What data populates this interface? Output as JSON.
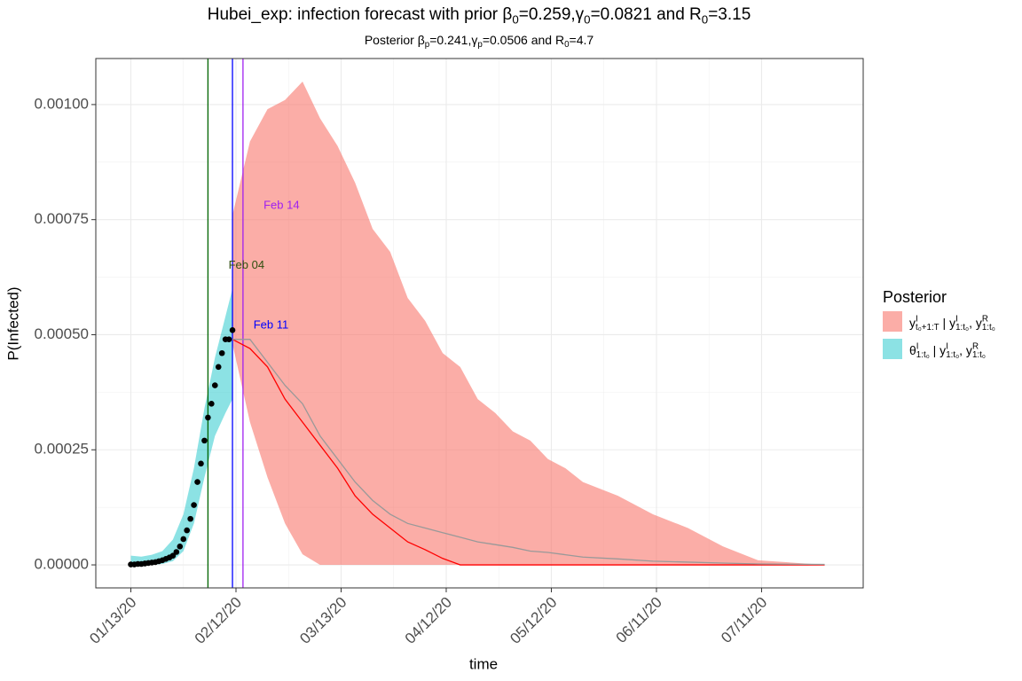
{
  "chart_data": {
    "type": "ribbon",
    "title": [
      "Hubei_exp: infection forecast with prior β",
      {
        "text": "0",
        "pos": "sub"
      },
      "=0.259,γ",
      {
        "text": "0",
        "pos": "sub"
      },
      "=0.0821 and R",
      {
        "text": "0",
        "pos": "sub"
      },
      "=3.15"
    ],
    "subtitle": [
      "Posterior β",
      {
        "text": "p",
        "pos": "sub"
      },
      "=0.241,γ",
      {
        "text": "p",
        "pos": "sub"
      },
      "=0.0506 and R",
      {
        "text": "0",
        "pos": "sub"
      },
      "=4.7"
    ],
    "x_label": "time",
    "y_label": "P(Infected)",
    "legend_title": "Posterior",
    "legend": "right",
    "grid": true,
    "xlim": [
      "01/03/20",
      "08/09/20"
    ],
    "xticks": [
      "01/13/20",
      "02/12/20",
      "03/13/20",
      "04/12/20",
      "05/12/20",
      "06/11/20",
      "07/11/20"
    ],
    "ylim": [
      -5e-05,
      0.0011
    ],
    "yticks": [
      {
        "value": 0,
        "label": "0.00000"
      },
      {
        "value": 0.00025,
        "label": "0.00025"
      },
      {
        "value": 0.0005,
        "label": "0.00050"
      },
      {
        "value": 0.00075,
        "label": "0.00075"
      },
      {
        "value": 0.001,
        "label": "0.00100"
      }
    ],
    "series": [
      {
        "name": [
          "y",
          {
            "text": "I",
            "pos": "sup"
          },
          {
            "text": "t₀+1:T",
            "pos": "sub"
          },
          " | y",
          {
            "text": "I",
            "pos": "sup"
          },
          {
            "text": "1:t₀",
            "pos": "sub"
          },
          ", y",
          {
            "text": "R",
            "pos": "sup"
          },
          {
            "text": "1:t₀",
            "pos": "sub"
          }
        ],
        "color": "#F8766D",
        "opacity": 0.6,
        "x": [
          "02/11/20",
          "02/16/20",
          "02/21/20",
          "02/26/20",
          "03/02/20",
          "03/07/20",
          "03/12/20",
          "03/17/20",
          "03/22/20",
          "03/27/20",
          "04/01/20",
          "04/06/20",
          "04/11/20",
          "04/16/20",
          "04/21/20",
          "04/26/20",
          "05/01/20",
          "05/06/20",
          "05/11/20",
          "05/16/20",
          "05/21/20",
          "05/31/20",
          "06/10/20",
          "06/20/20",
          "06/30/20",
          "07/10/20",
          "07/29/20"
        ],
        "lower": [
          0.00048,
          0.00031,
          0.00019,
          9e-05,
          2.3e-05,
          0,
          0,
          0,
          0,
          0,
          0,
          0,
          0,
          0,
          0,
          0,
          0,
          0,
          0,
          0,
          0,
          0,
          0,
          0,
          0,
          0,
          0
        ],
        "upper": [
          0.00076,
          0.00092,
          0.00099,
          0.00101,
          0.00105,
          0.00097,
          0.00091,
          0.00083,
          0.00073,
          0.00068,
          0.00058,
          0.00053,
          0.00046,
          0.00043,
          0.00036,
          0.00033,
          0.00029,
          0.00027,
          0.00023,
          0.00021,
          0.00018,
          0.00015,
          0.00011,
          8e-05,
          4e-05,
          1e-05,
          0
        ]
      },
      {
        "name": [
          "θ",
          {
            "text": "I",
            "pos": "sup"
          },
          {
            "text": "1:t₀",
            "pos": "sub"
          },
          " | y",
          {
            "text": "I",
            "pos": "sup"
          },
          {
            "text": "1:t₀",
            "pos": "sub"
          },
          ", y",
          {
            "text": "R",
            "pos": "sup"
          },
          {
            "text": "1:t₀",
            "pos": "sub"
          }
        ],
        "color": "#00BFC4",
        "opacity": 0.45,
        "x": [
          "01/13/20",
          "01/16/20",
          "01/19/20",
          "01/22/20",
          "01/25/20",
          "01/28/20",
          "01/31/20",
          "02/03/20",
          "02/06/20",
          "02/09/20",
          "02/11/20"
        ],
        "lower": [
          0,
          0,
          0,
          2e-06,
          8e-06,
          3e-05,
          9e-05,
          0.00019,
          0.00028,
          0.00033,
          0.00036
        ],
        "upper": [
          2e-05,
          1.8e-05,
          2.2e-05,
          3e-05,
          5.5e-05,
          0.00011,
          0.00021,
          0.00034,
          0.00045,
          0.00054,
          0.0006
        ]
      },
      {
        "color": "#FF0000",
        "x": [
          "02/11/20",
          "02/16/20",
          "02/21/20",
          "02/26/20",
          "03/02/20",
          "03/07/20",
          "03/12/20",
          "03/17/20",
          "03/22/20",
          "03/27/20",
          "04/01/20",
          "04/06/20",
          "04/11/20",
          "04/16/20",
          "04/21/20",
          "04/26/20",
          "05/01/20",
          "05/06/20",
          "05/11/20",
          "05/16/20",
          "05/21/20",
          "05/31/20",
          "06/10/20",
          "06/20/20",
          "06/30/20",
          "07/10/20",
          "07/29/20"
        ],
        "values": [
          0.00049,
          0.00047,
          0.00043,
          0.00036,
          0.00031,
          0.00026,
          0.00021,
          0.00015,
          0.00011,
          8e-05,
          5e-05,
          3.3e-05,
          1.4e-05,
          0,
          0,
          0,
          0,
          0,
          0,
          0,
          0,
          0,
          0,
          0,
          0,
          0,
          0
        ]
      },
      {
        "color": "#999999",
        "x": [
          "02/11/20",
          "02/16/20",
          "02/21/20",
          "02/26/20",
          "03/02/20",
          "03/07/20",
          "03/12/20",
          "03/17/20",
          "03/22/20",
          "03/27/20",
          "04/01/20",
          "04/06/20",
          "04/11/20",
          "04/16/20",
          "04/21/20",
          "04/26/20",
          "05/01/20",
          "05/06/20",
          "05/11/20",
          "05/16/20",
          "05/21/20",
          "05/31/20",
          "06/10/20",
          "06/20/20",
          "06/30/20",
          "07/10/20",
          "07/29/20"
        ],
        "values": [
          0.00049,
          0.00049,
          0.00044,
          0.00039,
          0.00035,
          0.00028,
          0.00023,
          0.00018,
          0.00014,
          0.00011,
          9e-05,
          8e-05,
          7e-05,
          6e-05,
          5e-05,
          4.4e-05,
          3.8e-05,
          3e-05,
          2.7e-05,
          2.2e-05,
          1.7e-05,
          1.3e-05,
          8e-06,
          6e-06,
          4e-06,
          2e-06,
          1e-06
        ]
      },
      {
        "color": "#000000",
        "marker": "point",
        "x": [
          "01/13/20",
          "01/14/20",
          "01/15/20",
          "01/16/20",
          "01/17/20",
          "01/18/20",
          "01/19/20",
          "01/20/20",
          "01/21/20",
          "01/22/20",
          "01/23/20",
          "01/24/20",
          "01/25/20",
          "01/26/20",
          "01/27/20",
          "01/28/20",
          "01/29/20",
          "01/30/20",
          "01/31/20",
          "02/01/20",
          "02/02/20",
          "02/03/20",
          "02/04/20",
          "02/05/20",
          "02/06/20",
          "02/07/20",
          "02/08/20",
          "02/09/20",
          "02/10/20",
          "02/11/20"
        ],
        "values": [
          1e-06,
          1e-06,
          2e-06,
          2e-06,
          3e-06,
          4e-06,
          5e-06,
          6e-06,
          8e-06,
          1e-05,
          1.3e-05,
          1.6e-05,
          2e-05,
          2.8e-05,
          4e-05,
          5.6e-05,
          7.5e-05,
          0.0001,
          0.00013,
          0.00018,
          0.00022,
          0.00027,
          0.00032,
          0.00035,
          0.00039,
          0.00043,
          0.00046,
          0.00049,
          0.00049,
          0.00051
        ]
      }
    ],
    "vlines": [
      {
        "x": "02/04/20",
        "color": "#006400"
      },
      {
        "x": "02/11/20",
        "color": "#0000FF"
      },
      {
        "x": "02/14/20",
        "color": "#A020F0"
      }
    ],
    "annotations": [
      {
        "text": "Feb 04",
        "x": "02/15/20",
        "y": 0.00065,
        "color": "#2F4F0F"
      },
      {
        "text": "Feb 11",
        "x": "02/22/20",
        "y": 0.00052,
        "color": "#0000FF"
      },
      {
        "text": "Feb 14",
        "x": "02/25/20",
        "y": 0.00078,
        "color": "#A020F0"
      }
    ]
  }
}
